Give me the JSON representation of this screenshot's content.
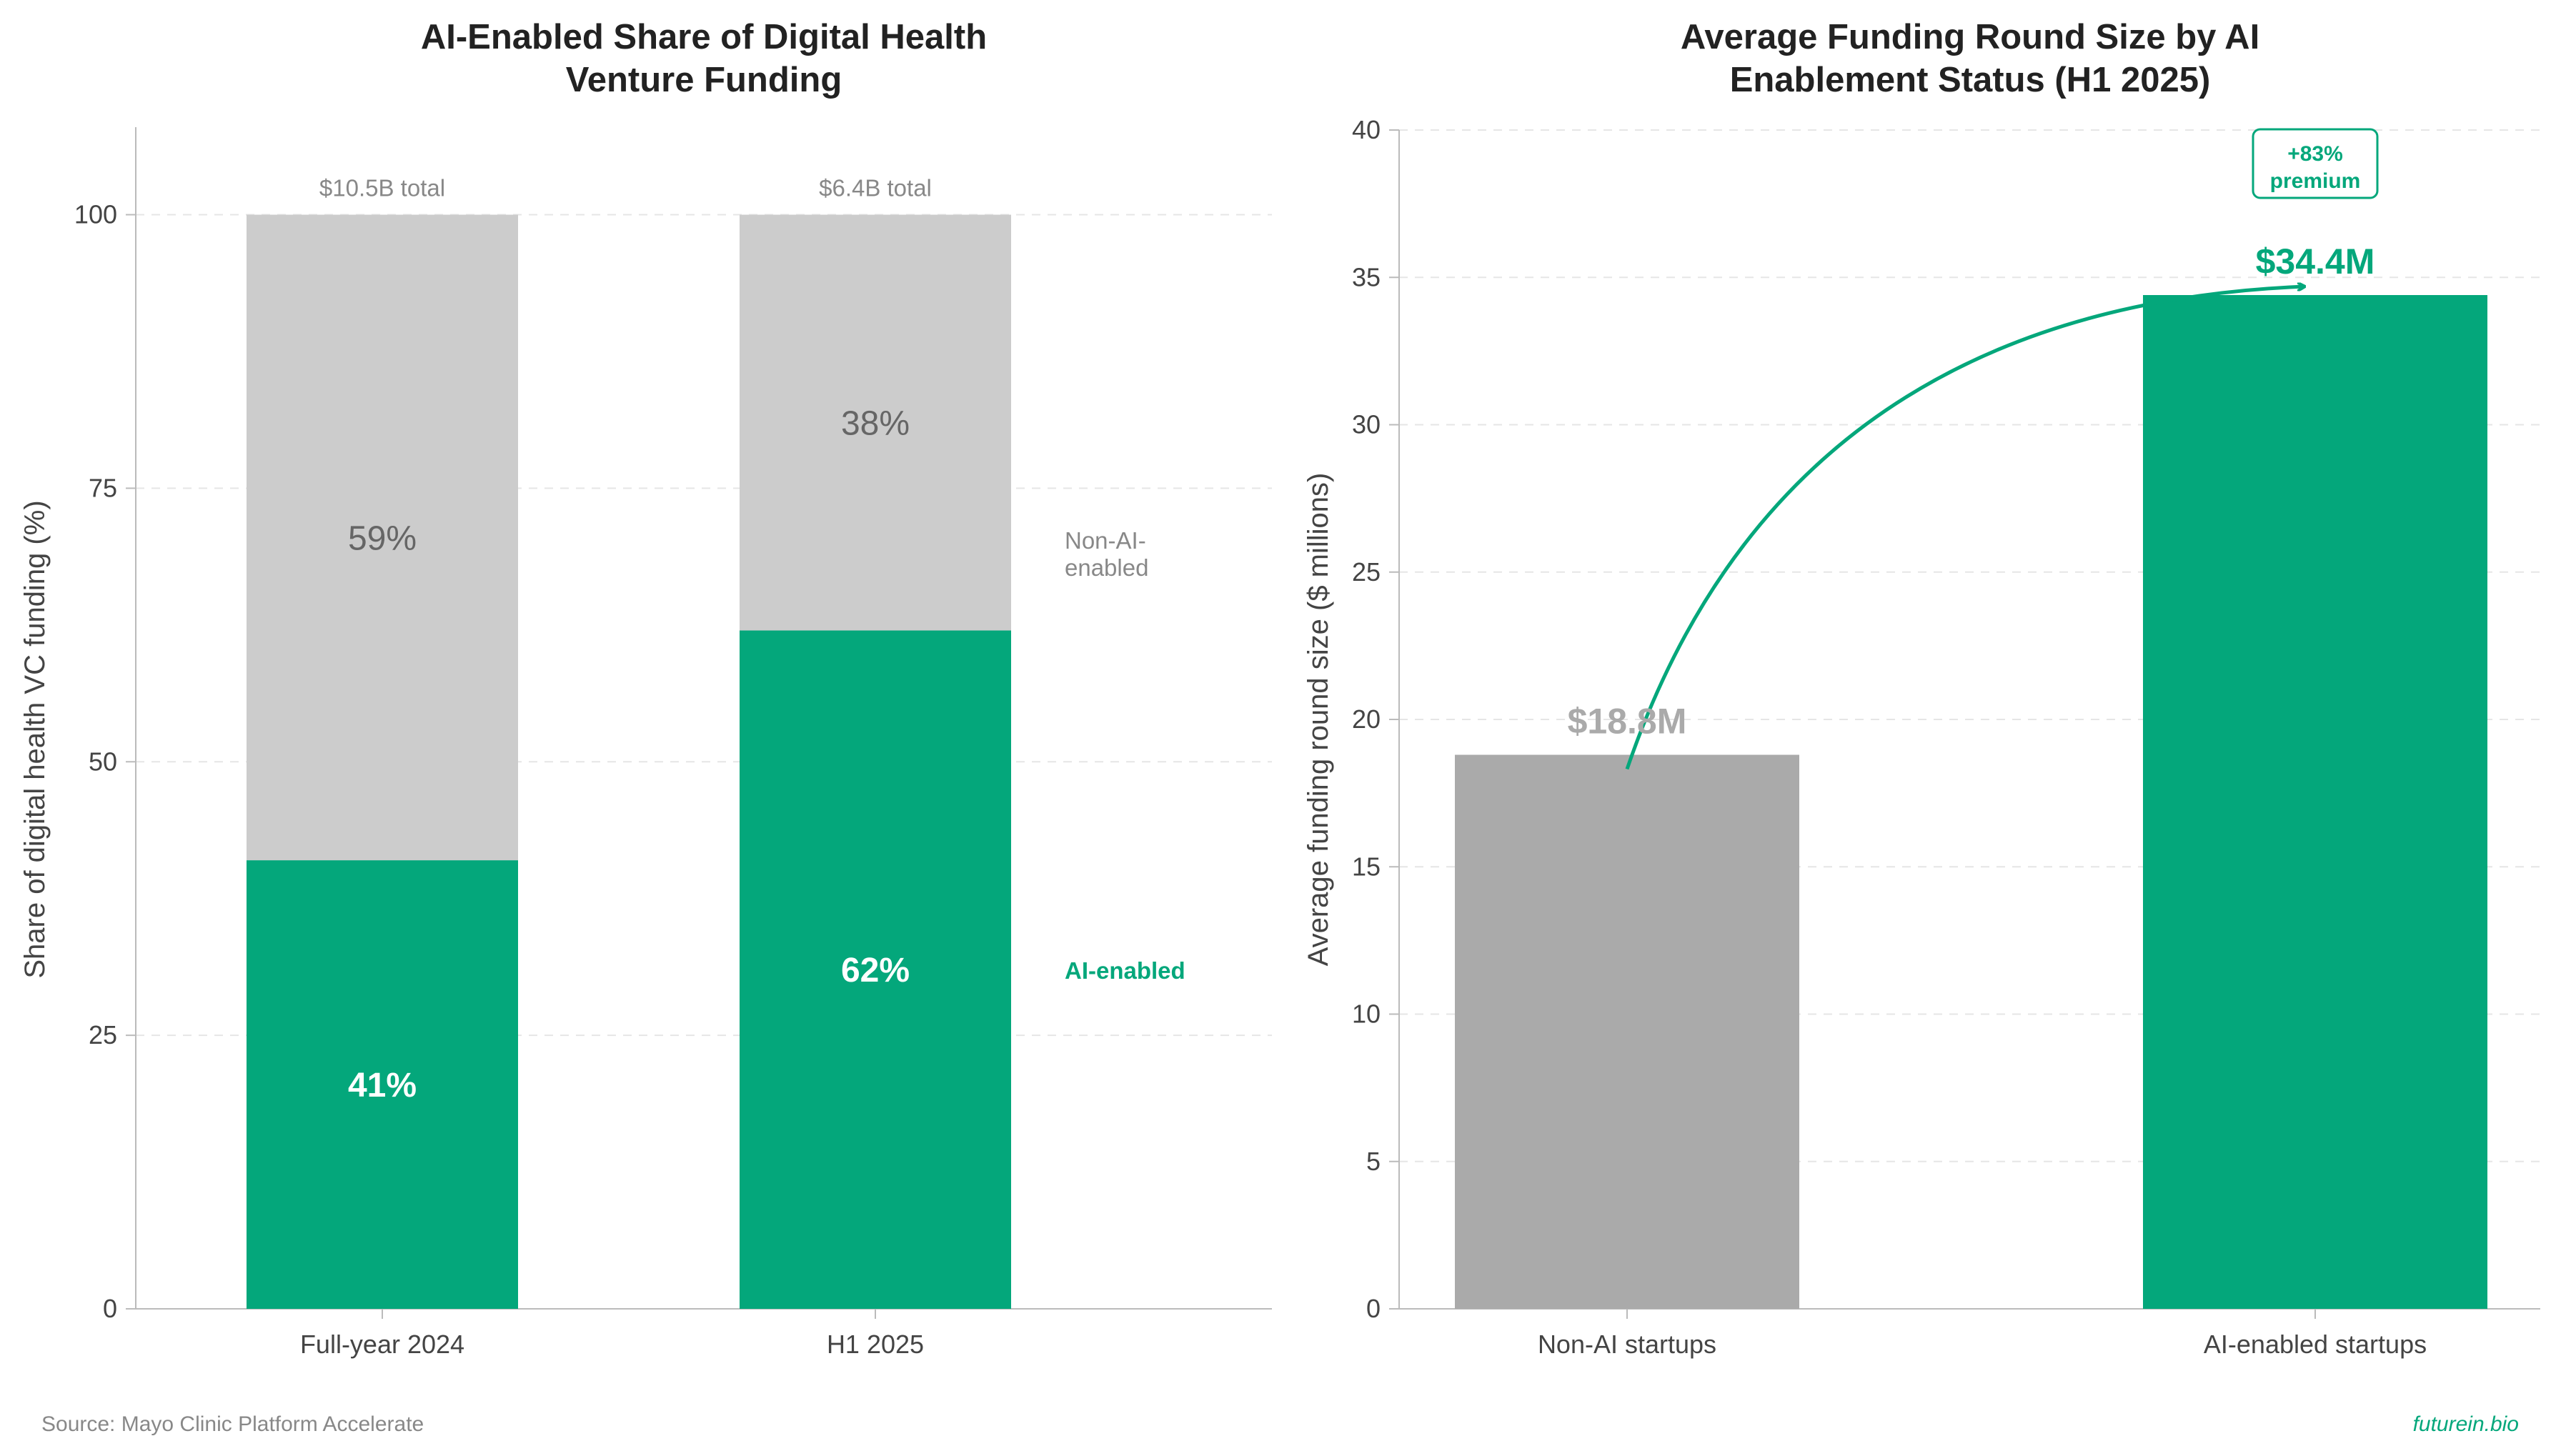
{
  "colors": {
    "ai": "#04a77b",
    "non_ai_share": "#cccccc",
    "non_ai_round": "#aaaaaa",
    "grid": "#e6e6e6",
    "axis": "#bbbbbb"
  },
  "footer": {
    "source": "Source: Mayo Clinic Platform Accelerate",
    "brand": "futurein.bio"
  },
  "chart_data": [
    {
      "type": "bar",
      "stacked": true,
      "title_lines": [
        "AI-Enabled Share of Digital Health",
        "Venture Funding"
      ],
      "ylabel": "Share of digital health VC funding (%)",
      "ylim": [
        0,
        108
      ],
      "yticks": [
        0,
        25,
        50,
        75,
        100
      ],
      "grid": "horizontal dashed",
      "categories": [
        "Full-year 2024",
        "H1 2025"
      ],
      "totals": [
        "$10.5B total",
        "$6.4B total"
      ],
      "series": [
        {
          "name": "AI-enabled",
          "values": [
            41,
            62
          ],
          "labels": [
            "41%",
            "62%"
          ]
        },
        {
          "name": "Non-AI-enabled",
          "values": [
            59,
            38
          ],
          "labels": [
            "59%",
            "38%"
          ]
        }
      ],
      "legend": {
        "placement": "right of bars",
        "ai_label": "AI-enabled",
        "non_ai_label_lines": [
          "Non-AI-",
          "enabled"
        ]
      }
    },
    {
      "type": "bar",
      "title_lines": [
        "Average Funding Round Size by AI",
        "Enablement Status (H1 2025)"
      ],
      "ylabel": "Average funding round size ($ millions)",
      "ylim": [
        0,
        40
      ],
      "yticks": [
        0,
        5,
        10,
        15,
        20,
        25,
        30,
        35,
        40
      ],
      "grid": "horizontal dashed",
      "categories": [
        "Non-AI startups",
        "AI-enabled startups"
      ],
      "values": [
        18.8,
        34.4
      ],
      "value_labels": [
        "$18.8M",
        "$34.4M"
      ],
      "annotation": {
        "lines": [
          "+83%",
          "premium"
        ],
        "arrow": "from Non-AI bar to AI-enabled bar"
      }
    }
  ]
}
